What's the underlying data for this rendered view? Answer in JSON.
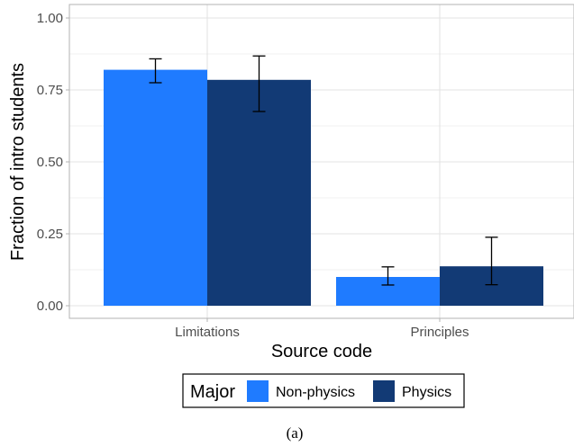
{
  "chart_data": {
    "type": "bar",
    "categories": [
      "Limitations",
      "Principles"
    ],
    "series": [
      {
        "name": "Non-physics",
        "color": "#1f7bff",
        "values": [
          0.82,
          0.1
        ],
        "error_low": [
          0.775,
          0.072
        ],
        "error_high": [
          0.858,
          0.135
        ]
      },
      {
        "name": "Physics",
        "color": "#123a75",
        "values": [
          0.785,
          0.137
        ],
        "error_low": [
          0.675,
          0.073
        ],
        "error_high": [
          0.868,
          0.238
        ]
      }
    ],
    "ylim": [
      0,
      1
    ],
    "yticks": [
      "0.00",
      "0.25",
      "0.50",
      "0.75",
      "1.00"
    ],
    "xlabel": "Source code",
    "ylabel": "Fraction of intro students",
    "legend": {
      "title": "Major",
      "position": "bottom"
    },
    "grid": true
  },
  "caption": "(a)"
}
